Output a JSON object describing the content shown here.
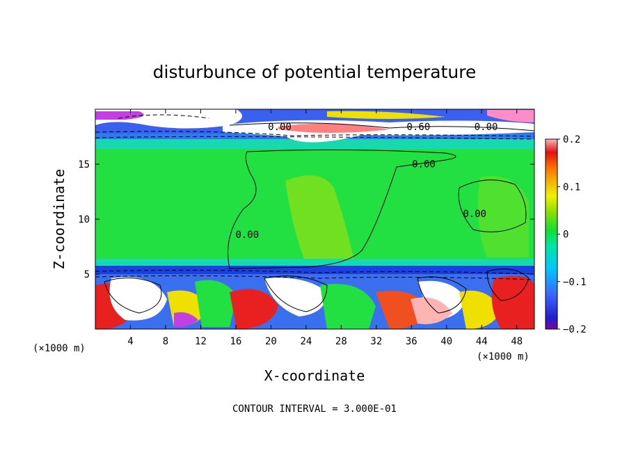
{
  "chart_data": {
    "type": "heatmap",
    "title": "disturbunce of potential temperature",
    "xlabel": "X-coordinate",
    "ylabel": "Z-coordinate",
    "x_unit": "(×1000 m)",
    "x_range": [
      0,
      50
    ],
    "y_range": [
      0,
      20
    ],
    "x_ticks": [
      4,
      8,
      12,
      16,
      20,
      24,
      28,
      32,
      36,
      40,
      44,
      48
    ],
    "y_ticks": [
      5,
      10,
      15
    ],
    "colorbar": {
      "min": -0.2,
      "max": 0.2,
      "tick_values": [
        -0.2,
        -0.1,
        0,
        0.1,
        0.2
      ],
      "tick_labels": [
        "−0.2",
        "−0.1",
        "0",
        "0.1",
        "0.2"
      ]
    },
    "contour_labels": [
      {
        "text": "0.00",
        "x": 21,
        "z": 18.1
      },
      {
        "text": "0.60",
        "x": 36.8,
        "z": 18.1
      },
      {
        "text": "0.00",
        "x": 44.5,
        "z": 18.1
      },
      {
        "text": "0.00",
        "x": 37.4,
        "z": 14.7
      },
      {
        "text": "0.00",
        "x": 43.2,
        "z": 10.2
      },
      {
        "text": "0.00",
        "x": 17.3,
        "z": 8.3
      }
    ],
    "contour_interval_text": "CONTOUR INTERVAL = 3.000E-01"
  }
}
